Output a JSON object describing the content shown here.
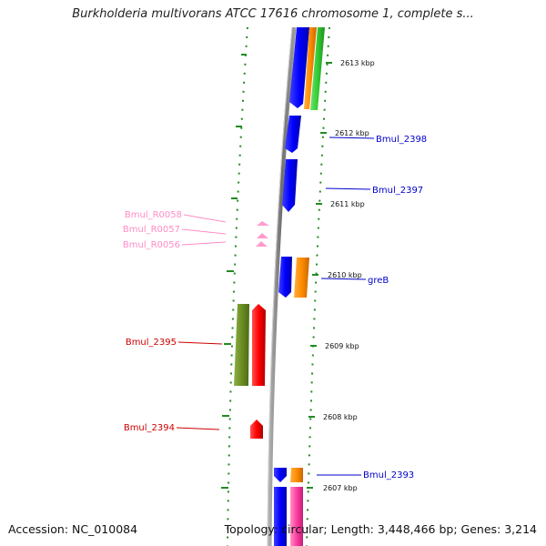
{
  "title": "Burkholderia multivorans ATCC 17616 chromosome 1, complete s...",
  "footer": {
    "accession": "Accession: NC_010084",
    "summary": "Topology: circular; Length: 3,448,466 bp; Genes: 3,214"
  },
  "colors": {
    "backbone": "#808080",
    "tick": "#228b22",
    "cds": "#0000ff",
    "orange": "#ff8c00",
    "green": "#33cc33",
    "olive": "#6b8e23",
    "red": "#ff0000",
    "pink": "#ff69b4",
    "rna": "#ff9ccf"
  },
  "ticks": [
    "2613 kbp",
    "2612 kbp",
    "2611 kbp",
    "2610 kbp",
    "2609 kbp",
    "2608 kbp",
    "2607 kbp"
  ],
  "labels": {
    "bmul_2398": "Bmul_2398",
    "bmul_2397": "Bmul_2397",
    "greb": "greB",
    "bmul_2393": "Bmul_2393",
    "bmul_r0058": "Bmul_R0058",
    "bmul_r0057": "Bmul_R0057",
    "bmul_r0056": "Bmul_R0056",
    "bmul_2395": "Bmul_2395",
    "bmul_2394": "Bmul_2394"
  }
}
